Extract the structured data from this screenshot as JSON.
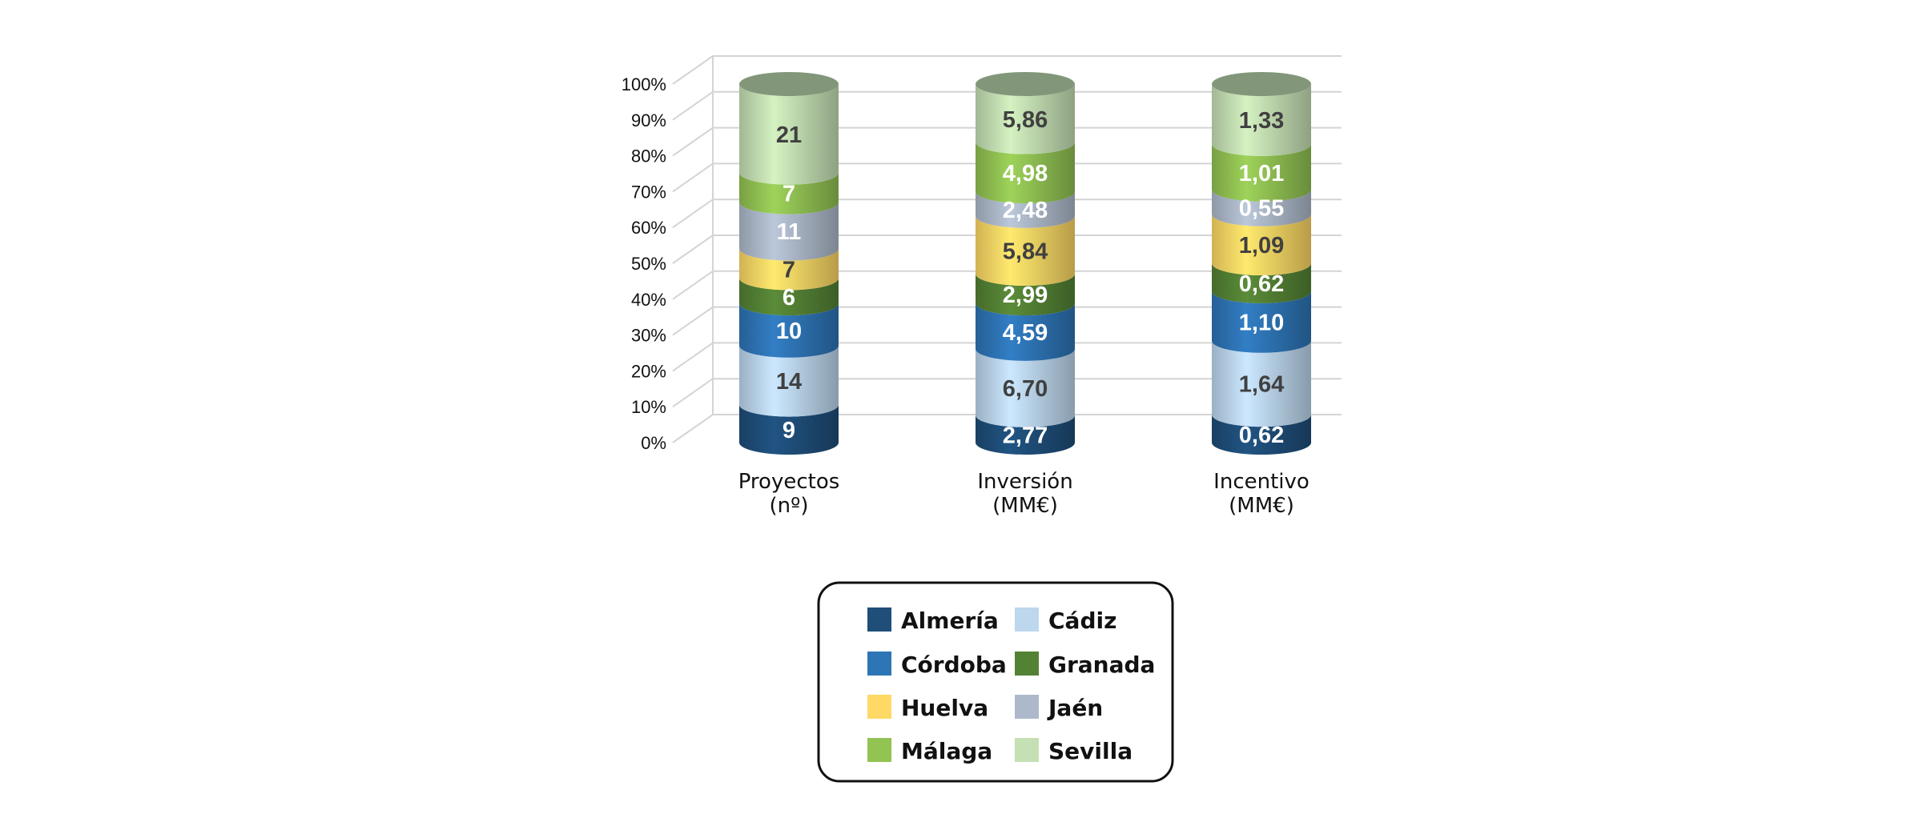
{
  "chart_data": {
    "type": "bar",
    "stacked": true,
    "normalized": true,
    "style": "3d-cylinder",
    "categories": [
      {
        "line1": "Proyectos",
        "line2": "(nº)"
      },
      {
        "line1": "Inversión",
        "line2": "(MM€)"
      },
      {
        "line1": "Incentivo",
        "line2": "(MM€)"
      }
    ],
    "y_ticks": [
      "0%",
      "10%",
      "20%",
      "30%",
      "40%",
      "50%",
      "60%",
      "70%",
      "80%",
      "90%",
      "100%"
    ],
    "ylim": [
      0,
      100
    ],
    "grid": true,
    "legend_position": "bottom",
    "series": [
      {
        "name": "Almería",
        "color": "#1F4E79",
        "label_color": "#ffffff",
        "values": [
          9,
          2.77,
          0.62
        ],
        "labels": [
          "9",
          "2,77",
          "0,62"
        ]
      },
      {
        "name": "Cádiz",
        "color": "#BDD7EE",
        "label_color": "#404040",
        "values": [
          14,
          6.7,
          1.64
        ],
        "labels": [
          "14",
          "6,70",
          "1,64"
        ]
      },
      {
        "name": "Córdoba",
        "color": "#2E75B6",
        "label_color": "#ffffff",
        "values": [
          10,
          4.59,
          1.1
        ],
        "labels": [
          "10",
          "4,59",
          "1,10"
        ]
      },
      {
        "name": "Granada",
        "color": "#548235",
        "label_color": "#ffffff",
        "values": [
          6,
          2.99,
          0.62
        ],
        "labels": [
          "6",
          "2,99",
          "0,62"
        ]
      },
      {
        "name": "Huelva",
        "color": "#FFD966",
        "label_color": "#404040",
        "values": [
          7,
          5.84,
          1.09
        ],
        "labels": [
          "7",
          "5,84",
          "1,09"
        ]
      },
      {
        "name": "Jaén",
        "color": "#ADB9CA",
        "label_color": "#ffffff",
        "values": [
          11,
          2.48,
          0.55
        ],
        "labels": [
          "11",
          "2,48",
          "0,55"
        ]
      },
      {
        "name": "Málaga",
        "color": "#92C353",
        "label_color": "#ffffff",
        "values": [
          7,
          4.98,
          1.01
        ],
        "labels": [
          "7",
          "4,98",
          "1,01"
        ]
      },
      {
        "name": "Sevilla",
        "color": "#C5E0B4",
        "label_color": "#404040",
        "values": [
          21,
          5.86,
          1.33
        ],
        "labels": [
          "21",
          "5,86",
          "1,33"
        ]
      }
    ],
    "legend_order": [
      "Almería",
      "Cádiz",
      "Córdoba",
      "Granada",
      "Huelva",
      "Jaén",
      "Málaga",
      "Sevilla"
    ]
  }
}
